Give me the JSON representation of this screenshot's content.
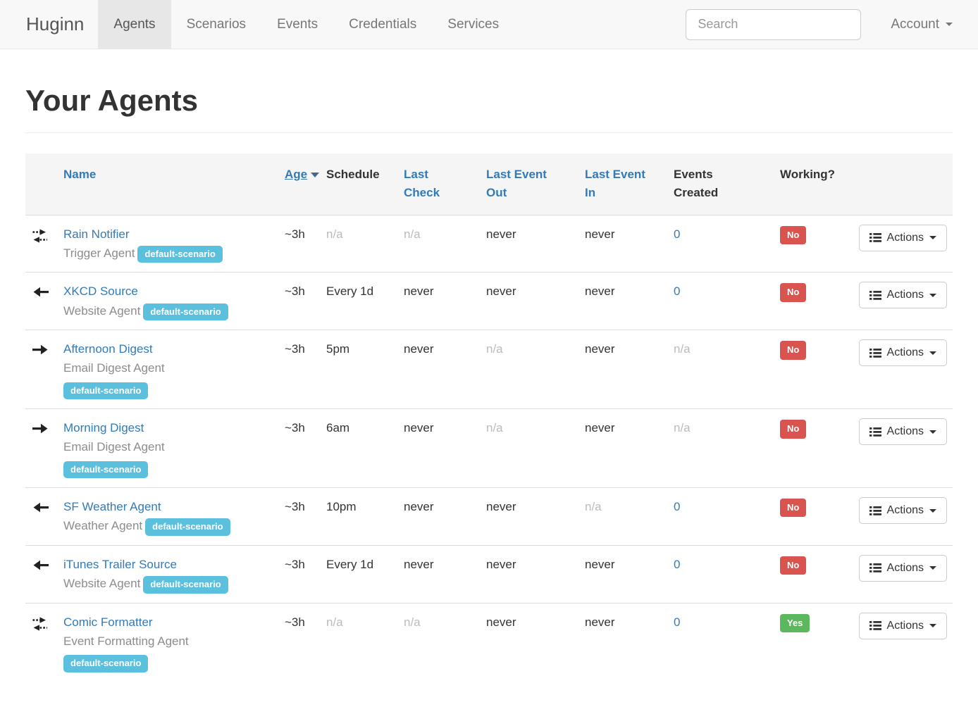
{
  "brand": "Huginn",
  "nav": {
    "items": [
      {
        "id": "agents",
        "label": "Agents",
        "active": true
      },
      {
        "id": "scenarios",
        "label": "Scenarios",
        "active": false
      },
      {
        "id": "events",
        "label": "Events",
        "active": false
      },
      {
        "id": "credentials",
        "label": "Credentials",
        "active": false
      },
      {
        "id": "services",
        "label": "Services",
        "active": false
      }
    ]
  },
  "search": {
    "placeholder": "Search"
  },
  "account": {
    "label": "Account"
  },
  "page": {
    "title": "Your Agents"
  },
  "colors": {
    "link_blue": "#337ab7",
    "badge_info": "#5bc0de",
    "status_danger": "#d9534f",
    "status_success": "#5cb85c"
  },
  "table": {
    "headers": [
      {
        "id": "name",
        "label": "Name",
        "kind": "link",
        "sorted": false
      },
      {
        "id": "age",
        "label": "Age",
        "kind": "link",
        "sorted": true
      },
      {
        "id": "schedule",
        "label": "Schedule",
        "kind": "plain",
        "sorted": false
      },
      {
        "id": "last-check",
        "label": "Last Check",
        "kind": "link",
        "sorted": false
      },
      {
        "id": "last-event-out",
        "label": "Last Event Out",
        "kind": "link",
        "sorted": false
      },
      {
        "id": "last-event-in",
        "label": "Last Event In",
        "kind": "link",
        "sorted": false
      },
      {
        "id": "events-created",
        "label": "Events Created",
        "kind": "plain",
        "sorted": false
      },
      {
        "id": "working",
        "label": "Working?",
        "kind": "plain",
        "sorted": false
      }
    ],
    "rows": [
      {
        "icon": "arrows-both-icon",
        "name": "Rain Notifier",
        "type": "Trigger Agent",
        "badge": "default-scenario",
        "badge_own_line": false,
        "age": {
          "text": "~3h",
          "style": "normal"
        },
        "schedule": {
          "text": "n/a",
          "style": "muted"
        },
        "last_check": {
          "text": "n/a",
          "style": "muted"
        },
        "last_event_out": {
          "text": "never",
          "style": "normal"
        },
        "last_event_in": {
          "text": "never",
          "style": "normal"
        },
        "events_created": {
          "text": "0",
          "style": "link"
        },
        "working": {
          "text": "No",
          "style": "danger"
        },
        "actions": "Actions"
      },
      {
        "icon": "arrow-left-icon",
        "name": "XKCD Source",
        "type": "Website Agent",
        "badge": "default-scenario",
        "badge_own_line": false,
        "age": {
          "text": "~3h",
          "style": "normal"
        },
        "schedule": {
          "text": "Every 1d",
          "style": "normal"
        },
        "last_check": {
          "text": "never",
          "style": "normal"
        },
        "last_event_out": {
          "text": "never",
          "style": "normal"
        },
        "last_event_in": {
          "text": "never",
          "style": "normal"
        },
        "events_created": {
          "text": "0",
          "style": "link"
        },
        "working": {
          "text": "No",
          "style": "danger"
        },
        "actions": "Actions"
      },
      {
        "icon": "arrow-right-icon",
        "name": "Afternoon Digest",
        "type": "Email Digest Agent",
        "badge": "default-scenario",
        "badge_own_line": true,
        "age": {
          "text": "~3h",
          "style": "normal"
        },
        "schedule": {
          "text": "5pm",
          "style": "normal"
        },
        "last_check": {
          "text": "never",
          "style": "normal"
        },
        "last_event_out": {
          "text": "n/a",
          "style": "muted"
        },
        "last_event_in": {
          "text": "never",
          "style": "normal"
        },
        "events_created": {
          "text": "n/a",
          "style": "muted"
        },
        "working": {
          "text": "No",
          "style": "danger"
        },
        "actions": "Actions"
      },
      {
        "icon": "arrow-right-icon",
        "name": "Morning Digest",
        "type": "Email Digest Agent",
        "badge": "default-scenario",
        "badge_own_line": true,
        "age": {
          "text": "~3h",
          "style": "normal"
        },
        "schedule": {
          "text": "6am",
          "style": "normal"
        },
        "last_check": {
          "text": "never",
          "style": "normal"
        },
        "last_event_out": {
          "text": "n/a",
          "style": "muted"
        },
        "last_event_in": {
          "text": "never",
          "style": "normal"
        },
        "events_created": {
          "text": "n/a",
          "style": "muted"
        },
        "working": {
          "text": "No",
          "style": "danger"
        },
        "actions": "Actions"
      },
      {
        "icon": "arrow-left-icon",
        "name": "SF Weather Agent",
        "type": "Weather Agent",
        "badge": "default-scenario",
        "badge_own_line": false,
        "age": {
          "text": "~3h",
          "style": "normal"
        },
        "schedule": {
          "text": "10pm",
          "style": "normal"
        },
        "last_check": {
          "text": "never",
          "style": "normal"
        },
        "last_event_out": {
          "text": "never",
          "style": "normal"
        },
        "last_event_in": {
          "text": "n/a",
          "style": "muted"
        },
        "events_created": {
          "text": "0",
          "style": "link"
        },
        "working": {
          "text": "No",
          "style": "danger"
        },
        "actions": "Actions"
      },
      {
        "icon": "arrow-left-icon",
        "name": "iTunes Trailer Source",
        "type": "Website Agent",
        "badge": "default-scenario",
        "badge_own_line": false,
        "age": {
          "text": "~3h",
          "style": "normal"
        },
        "schedule": {
          "text": "Every 1d",
          "style": "normal"
        },
        "last_check": {
          "text": "never",
          "style": "normal"
        },
        "last_event_out": {
          "text": "never",
          "style": "normal"
        },
        "last_event_in": {
          "text": "never",
          "style": "normal"
        },
        "events_created": {
          "text": "0",
          "style": "link"
        },
        "working": {
          "text": "No",
          "style": "danger"
        },
        "actions": "Actions"
      },
      {
        "icon": "arrows-both-icon",
        "name": "Comic Formatter",
        "type": "Event Formatting Agent",
        "badge": "default-scenario",
        "badge_own_line": true,
        "age": {
          "text": "~3h",
          "style": "normal"
        },
        "schedule": {
          "text": "n/a",
          "style": "muted"
        },
        "last_check": {
          "text": "n/a",
          "style": "muted"
        },
        "last_event_out": {
          "text": "never",
          "style": "normal"
        },
        "last_event_in": {
          "text": "never",
          "style": "normal"
        },
        "events_created": {
          "text": "0",
          "style": "link"
        },
        "working": {
          "text": "Yes",
          "style": "success"
        },
        "actions": "Actions"
      }
    ]
  }
}
